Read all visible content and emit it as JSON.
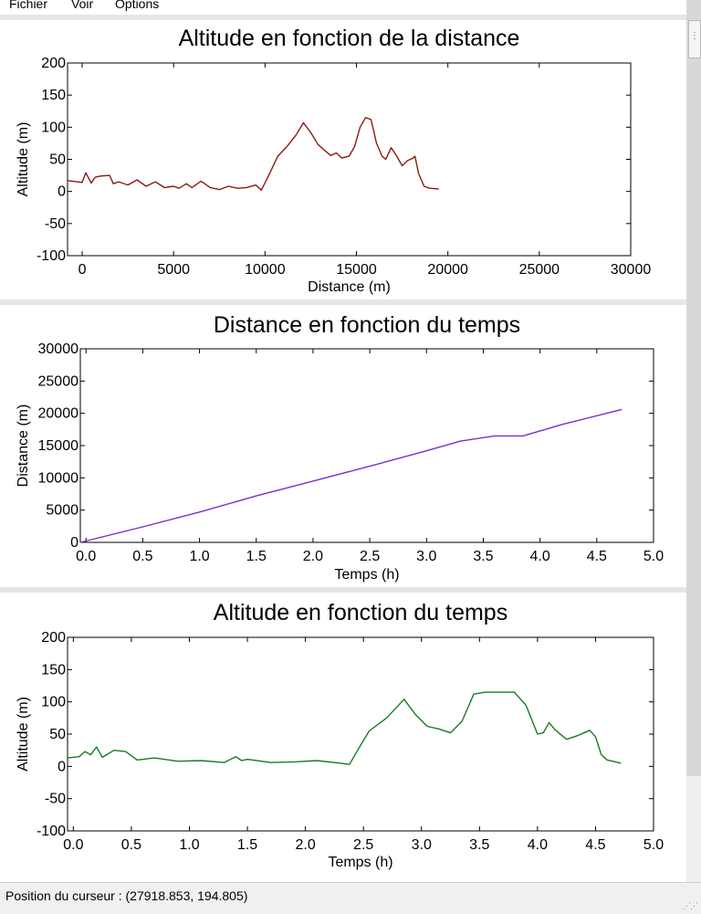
{
  "menu": {
    "items": [
      "Fichier",
      "Voir",
      "Options"
    ]
  },
  "status": {
    "text": "Position du curseur : (27918.853, 194.805)"
  },
  "chart_data": [
    {
      "type": "line",
      "title": "Altitude en fonction de la distance",
      "xlabel": "Distance (m)",
      "ylabel": "Altitude (m)",
      "xlim": [
        -800,
        30000
      ],
      "ylim": [
        -100,
        200
      ],
      "xticks": [
        0,
        5000,
        10000,
        15000,
        20000,
        25000,
        30000
      ],
      "yticks": [
        -100,
        -50,
        0,
        50,
        100,
        150,
        200
      ],
      "grid": false,
      "color": "#8b1a10",
      "series": [
        {
          "x": [
            -800,
            -300,
            0,
            200,
            500,
            700,
            1000,
            1500,
            1700,
            2000,
            2500,
            3000,
            3500,
            4000,
            4500,
            5000,
            5300,
            5700,
            6000,
            6500,
            7000,
            7500,
            8000,
            8500,
            9000,
            9500,
            9800,
            10200,
            10700,
            11200,
            11700,
            12100,
            12500,
            12900,
            13300,
            13600,
            13900,
            14200,
            14600,
            14900,
            15200,
            15500,
            15800,
            16100,
            16400,
            16600,
            16900,
            17200,
            17500,
            17800,
            18100,
            18200,
            18400,
            18700,
            19000,
            19500
          ],
          "y": [
            17,
            15,
            14,
            29,
            13,
            22,
            24,
            25,
            12,
            15,
            10,
            18,
            8,
            15,
            6,
            8,
            5,
            12,
            6,
            16,
            6,
            3,
            8,
            5,
            6,
            10,
            2,
            25,
            55,
            70,
            88,
            107,
            92,
            73,
            63,
            56,
            60,
            52,
            55,
            70,
            100,
            115,
            112,
            75,
            55,
            50,
            68,
            55,
            40,
            48,
            52,
            55,
            28,
            8,
            5,
            4
          ]
        }
      ]
    },
    {
      "type": "line",
      "title": "Distance en fonction du temps",
      "xlabel": "Temps (h)",
      "ylabel": "Distance (m)",
      "xlim": [
        -0.05,
        5
      ],
      "ylim": [
        0,
        30000
      ],
      "xticks": [
        "0.0",
        "0.5",
        "1.0",
        "1.5",
        "2.0",
        "2.5",
        "3.0",
        "3.5",
        "4.0",
        "4.5",
        "5.0"
      ],
      "yticks": [
        0,
        5000,
        10000,
        15000,
        20000,
        25000,
        30000
      ],
      "grid": false,
      "color": "#7a2ecf",
      "series": [
        {
          "x": [
            -0.05,
            0.5,
            1.0,
            1.5,
            2.0,
            2.5,
            3.0,
            3.3,
            3.6,
            3.85,
            4.2,
            4.72
          ],
          "y": [
            0,
            2400,
            4700,
            7200,
            9500,
            11800,
            14200,
            15700,
            16500,
            16500,
            18300,
            20600
          ]
        }
      ]
    },
    {
      "type": "line",
      "title": "Altitude en fonction du temps",
      "xlabel": "Temps (h)",
      "ylabel": "Altitude (m)",
      "xlim": [
        -0.05,
        5
      ],
      "ylim": [
        -100,
        200
      ],
      "xticks": [
        "0.0",
        "0.5",
        "1.0",
        "1.5",
        "2.0",
        "2.5",
        "3.0",
        "3.5",
        "4.0",
        "4.5",
        "5.0"
      ],
      "yticks": [
        -100,
        -50,
        0,
        50,
        100,
        150,
        200
      ],
      "grid": false,
      "color": "#1a7a22",
      "series": [
        {
          "x": [
            -0.05,
            0.05,
            0.1,
            0.15,
            0.2,
            0.25,
            0.35,
            0.45,
            0.55,
            0.7,
            0.9,
            1.1,
            1.3,
            1.4,
            1.45,
            1.5,
            1.7,
            1.9,
            2.1,
            2.3,
            2.38,
            2.45,
            2.55,
            2.7,
            2.85,
            2.95,
            3.05,
            3.15,
            3.25,
            3.35,
            3.45,
            3.55,
            3.8,
            3.9,
            4.0,
            4.05,
            4.1,
            4.15,
            4.25,
            4.35,
            4.45,
            4.5,
            4.55,
            4.6,
            4.72
          ],
          "y": [
            13,
            15,
            23,
            18,
            30,
            14,
            25,
            23,
            10,
            13,
            8,
            9,
            6,
            15,
            9,
            11,
            6,
            7,
            9,
            5,
            3,
            25,
            55,
            75,
            104,
            80,
            62,
            58,
            52,
            70,
            112,
            115,
            115,
            95,
            50,
            52,
            68,
            57,
            42,
            48,
            56,
            46,
            18,
            10,
            5
          ]
        }
      ]
    }
  ]
}
